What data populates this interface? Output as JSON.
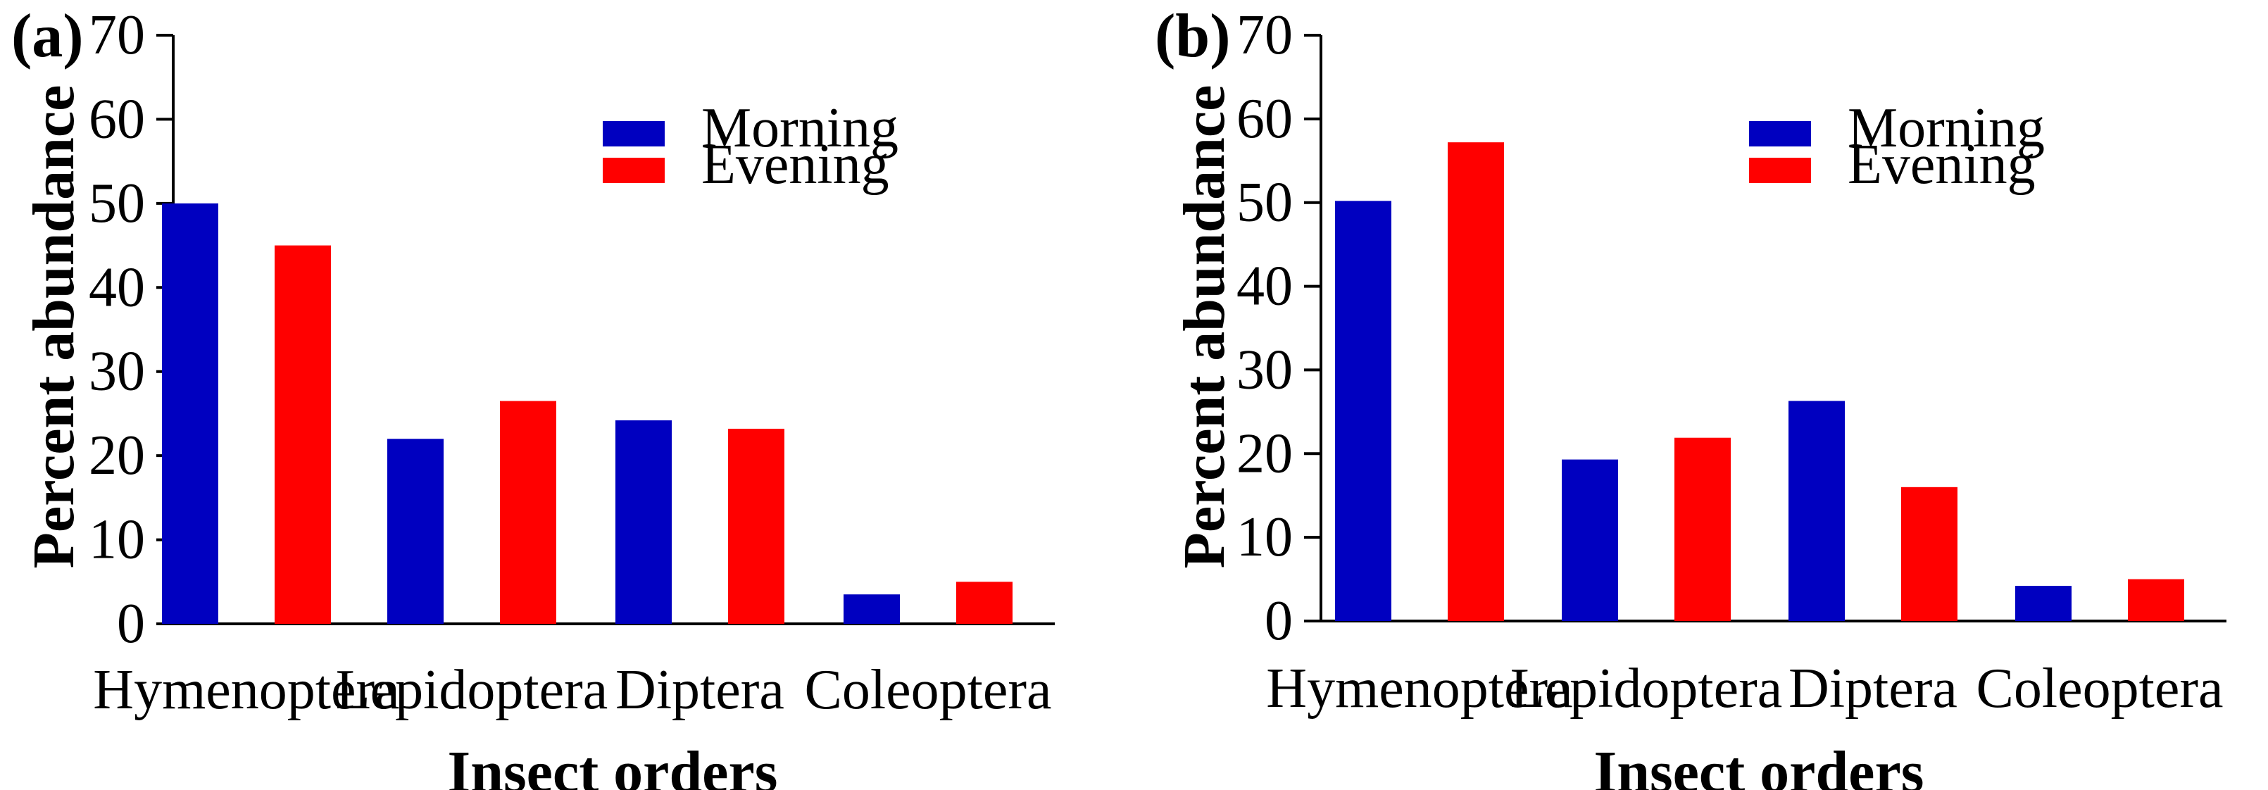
{
  "chart_data": [
    {
      "type": "bar",
      "panel_label": "(a)",
      "categories": [
        "Hymenoptera",
        "Lepidoptera",
        "Diptera",
        "Coleoptera"
      ],
      "series": [
        {
          "name": "Morning",
          "color": "#0000c0",
          "values": [
            50,
            22,
            24.2,
            3.5
          ]
        },
        {
          "name": "Evening",
          "color": "#ff0000",
          "values": [
            45,
            26.5,
            23.2,
            5
          ]
        }
      ],
      "xlabel": "Insect orders",
      "ylabel": "Percent abundance",
      "ylim": [
        0,
        70
      ],
      "yticks": [
        0,
        10,
        20,
        30,
        40,
        50,
        60,
        70
      ],
      "legend": "top-right"
    },
    {
      "type": "bar",
      "panel_label": "(b)",
      "categories": [
        "Hymenoptera",
        "Lepidoptera",
        "Diptera",
        "Coleoptera"
      ],
      "series": [
        {
          "name": "Morning",
          "color": "#0000c0",
          "values": [
            50.2,
            19.3,
            26.3,
            4.2
          ]
        },
        {
          "name": "Evening",
          "color": "#ff0000",
          "values": [
            57.2,
            21.9,
            16,
            5
          ]
        }
      ],
      "xlabel": "Insect orders",
      "ylabel": "Percent abundance",
      "ylim": [
        0,
        70
      ],
      "yticks": [
        0,
        10,
        20,
        30,
        40,
        50,
        60,
        70
      ],
      "legend": "top-right"
    }
  ]
}
